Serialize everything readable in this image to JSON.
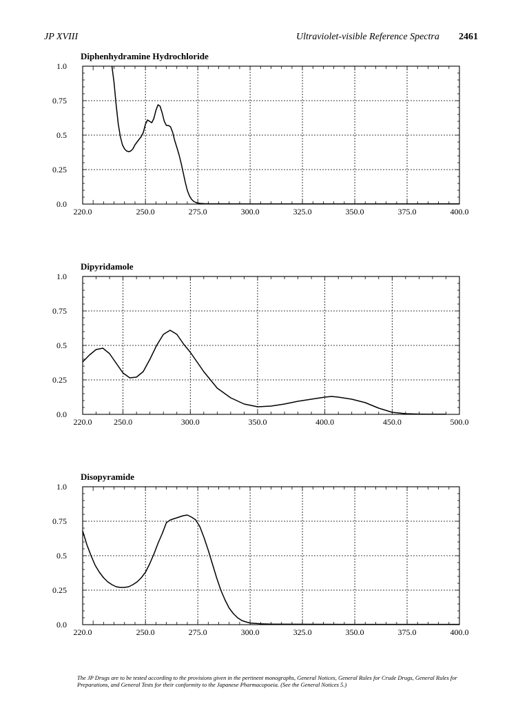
{
  "header": {
    "left": "JP XVIII",
    "right": "Ultraviolet-visible Reference Spectra",
    "page": "2461"
  },
  "footnote": "The JP Drugs are to be tested according to the provisions given in the pertinent monographs, General Notices, General Rules for Crude Drugs, General Rules for Preparations, and General Tests for their conformity to the Japanese Pharmacopoeia. (See the General Notices 5.)",
  "chart_data": [
    {
      "type": "line",
      "title": "Diphenhydramine Hydrochloride",
      "xlabel": "",
      "ylabel": "",
      "xlim": [
        220,
        400
      ],
      "ylim": [
        0,
        1
      ],
      "x_ticks": [
        220,
        250,
        275,
        300,
        325,
        350,
        375,
        400
      ],
      "x_tick_labels": [
        "220.0",
        "250.0",
        "275.0",
        "300.0",
        "325.0",
        "350.0",
        "375.0",
        "400.0"
      ],
      "y_ticks": [
        0,
        0.25,
        0.5,
        0.75,
        1
      ],
      "y_tick_labels": [
        "0.0",
        "0.25",
        "0.5",
        "0.75",
        "1.0"
      ],
      "grid": true,
      "series": [
        {
          "x": [
            234,
            235,
            236,
            237,
            238,
            239,
            240,
            241,
            242,
            243,
            244,
            245,
            246,
            247,
            248,
            249,
            250,
            251,
            252,
            253,
            254,
            255,
            256,
            257,
            258,
            259,
            260,
            261,
            262,
            263,
            264,
            265,
            266,
            267,
            268,
            269,
            270,
            271,
            272,
            273,
            274,
            275,
            276,
            278,
            280,
            285,
            300,
            350,
            400
          ],
          "y": [
            1.0,
            0.88,
            0.72,
            0.58,
            0.49,
            0.43,
            0.4,
            0.385,
            0.38,
            0.385,
            0.4,
            0.43,
            0.45,
            0.47,
            0.49,
            0.52,
            0.58,
            0.61,
            0.6,
            0.59,
            0.62,
            0.68,
            0.72,
            0.71,
            0.66,
            0.6,
            0.57,
            0.57,
            0.56,
            0.52,
            0.46,
            0.41,
            0.36,
            0.3,
            0.23,
            0.16,
            0.1,
            0.06,
            0.035,
            0.02,
            0.012,
            0.008,
            0.005,
            0.003,
            0.002,
            0.002,
            0.001,
            0.001,
            0.002
          ]
        }
      ]
    },
    {
      "type": "line",
      "title": "Dipyridamole",
      "xlabel": "",
      "ylabel": "",
      "xlim": [
        220,
        500
      ],
      "ylim": [
        0,
        1
      ],
      "x_ticks": [
        220,
        250,
        300,
        350,
        400,
        450,
        500
      ],
      "x_tick_labels": [
        "220.0",
        "250.0",
        "300.0",
        "350.0",
        "400.0",
        "450.0",
        "500.0"
      ],
      "y_ticks": [
        0,
        0.25,
        0.5,
        0.75,
        1
      ],
      "y_tick_labels": [
        "0.0",
        "0.25",
        "0.5",
        "0.75",
        "1.0"
      ],
      "grid": true,
      "series": [
        {
          "x": [
            220,
            225,
            230,
            235,
            240,
            245,
            250,
            255,
            260,
            265,
            270,
            275,
            280,
            285,
            290,
            295,
            300,
            305,
            310,
            320,
            330,
            340,
            350,
            360,
            370,
            380,
            390,
            400,
            405,
            410,
            420,
            430,
            440,
            450,
            460,
            470,
            480,
            490
          ],
          "y": [
            0.38,
            0.43,
            0.47,
            0.48,
            0.44,
            0.37,
            0.3,
            0.265,
            0.27,
            0.31,
            0.4,
            0.5,
            0.58,
            0.61,
            0.58,
            0.51,
            0.45,
            0.38,
            0.31,
            0.19,
            0.12,
            0.075,
            0.055,
            0.06,
            0.075,
            0.095,
            0.11,
            0.125,
            0.13,
            0.125,
            0.11,
            0.085,
            0.045,
            0.015,
            0.005,
            0.002,
            0.001,
            0.001
          ]
        }
      ]
    },
    {
      "type": "line",
      "title": "Disopyramide",
      "xlabel": "",
      "ylabel": "",
      "xlim": [
        220,
        400
      ],
      "ylim": [
        0,
        1
      ],
      "x_ticks": [
        220,
        250,
        275,
        300,
        325,
        350,
        375,
        400
      ],
      "x_tick_labels": [
        "220.0",
        "250.0",
        "275.0",
        "300.0",
        "325.0",
        "350.0",
        "375.0",
        "400.0"
      ],
      "y_ticks": [
        0,
        0.25,
        0.5,
        0.75,
        1
      ],
      "y_tick_labels": [
        "0.0",
        "0.25",
        "0.5",
        "0.75",
        "1.0"
      ],
      "grid": true,
      "series": [
        {
          "x": [
            220,
            222,
            224,
            226,
            228,
            230,
            232,
            234,
            236,
            238,
            240,
            242,
            244,
            246,
            248,
            250,
            252,
            254,
            256,
            258,
            260,
            262,
            264,
            266,
            268,
            270,
            272,
            274,
            276,
            278,
            280,
            282,
            284,
            286,
            288,
            290,
            292,
            294,
            296,
            298,
            300,
            305,
            310,
            320,
            350,
            400
          ],
          "y": [
            0.68,
            0.58,
            0.5,
            0.43,
            0.38,
            0.34,
            0.31,
            0.29,
            0.275,
            0.27,
            0.27,
            0.275,
            0.29,
            0.31,
            0.34,
            0.38,
            0.44,
            0.51,
            0.59,
            0.66,
            0.74,
            0.76,
            0.77,
            0.78,
            0.79,
            0.795,
            0.78,
            0.76,
            0.71,
            0.63,
            0.54,
            0.44,
            0.34,
            0.25,
            0.18,
            0.12,
            0.08,
            0.05,
            0.03,
            0.02,
            0.012,
            0.006,
            0.004,
            0.003,
            0.002,
            0.002
          ]
        }
      ]
    }
  ]
}
